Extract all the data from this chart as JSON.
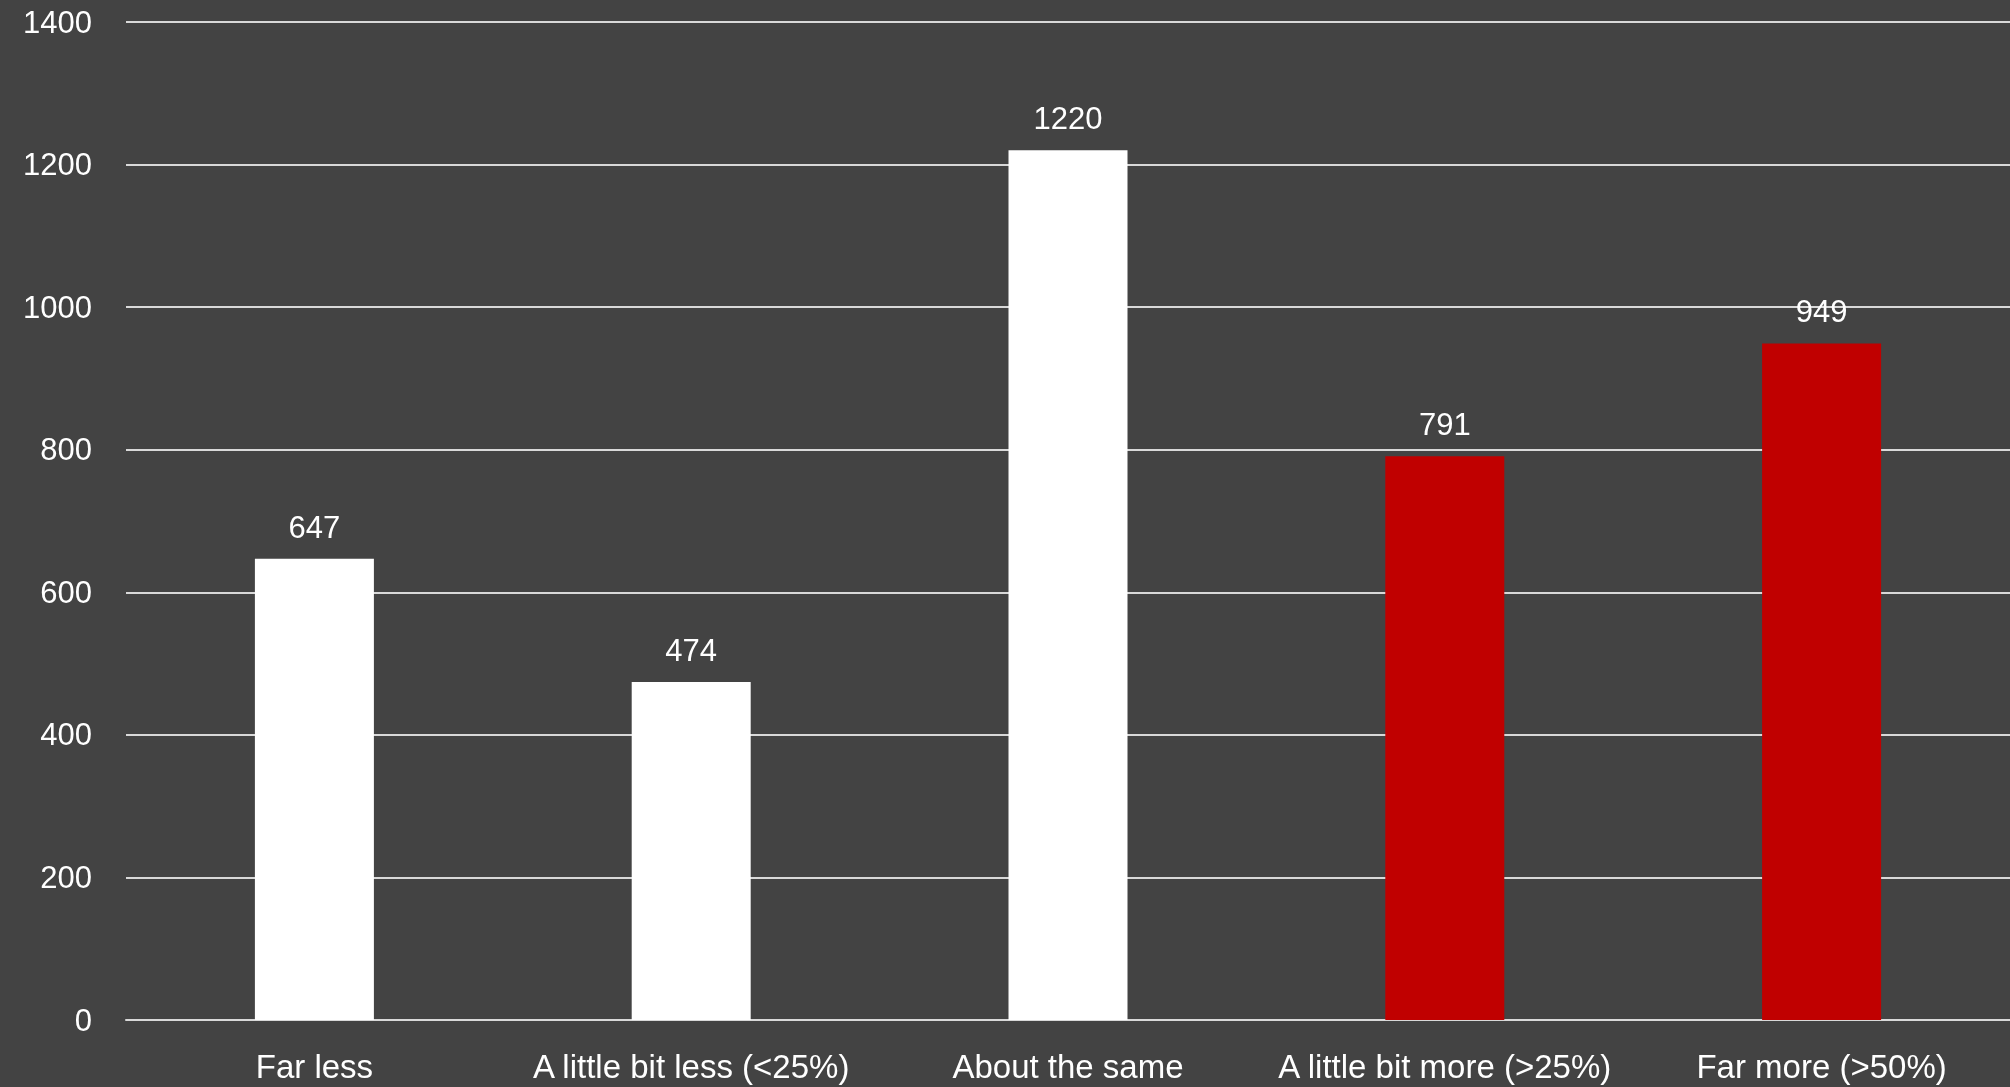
{
  "chart_data": {
    "type": "bar",
    "categories": [
      "Far less",
      "A little bit less (<25%)",
      "About the same",
      "A little bit more (>25%)",
      "Far more (>50%)"
    ],
    "values": [
      647,
      474,
      1220,
      791,
      949
    ],
    "colors": [
      "#ffffff",
      "#ffffff",
      "#ffffff",
      "#c00000",
      "#c00000"
    ],
    "ylim": [
      0,
      1400
    ],
    "yticks": [
      0,
      200,
      400,
      600,
      800,
      1000,
      1200,
      1400
    ],
    "grid": "y",
    "data_labels": true
  }
}
